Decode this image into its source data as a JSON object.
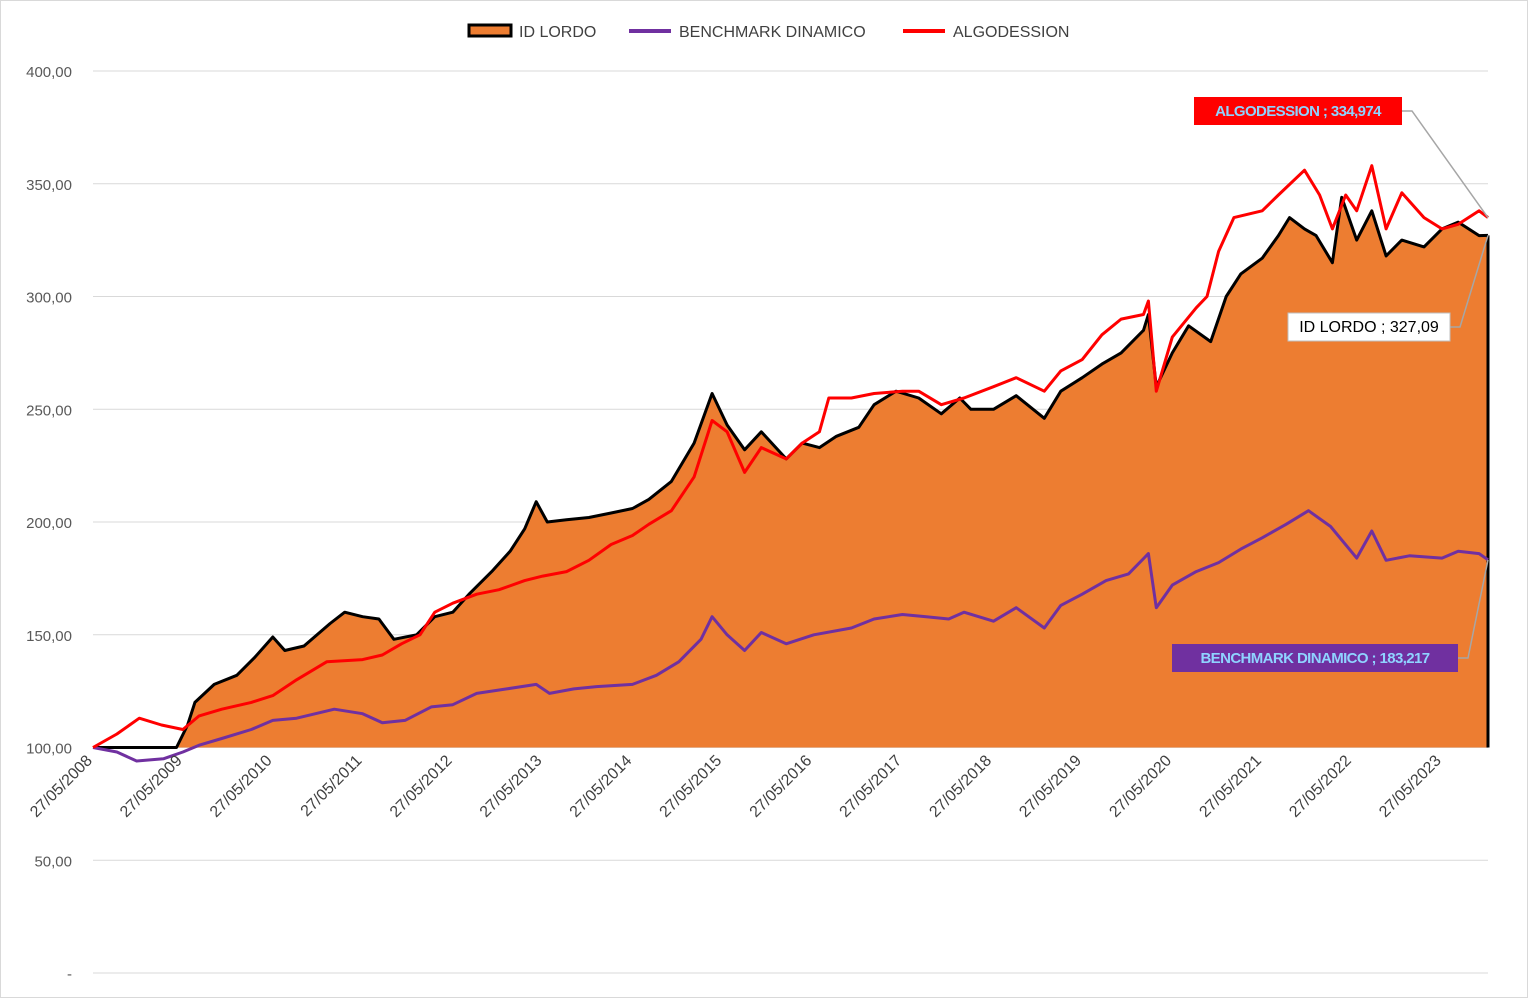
{
  "chart_data": {
    "type": "area",
    "title": "",
    "xlabel": "",
    "ylabel": "",
    "ylim": [
      0,
      400
    ],
    "y_ticks": [
      "-",
      "50,00",
      "100,00",
      "150,00",
      "200,00",
      "250,00",
      "300,00",
      "350,00",
      "400,00"
    ],
    "x_ticks": [
      "27/05/2008",
      "27/05/2009",
      "27/05/2010",
      "27/05/2011",
      "27/05/2012",
      "27/05/2013",
      "27/05/2014",
      "27/05/2015",
      "27/05/2016",
      "27/05/2017",
      "27/05/2018",
      "27/05/2019",
      "27/05/2020",
      "27/05/2021",
      "27/05/2022",
      "27/05/2023"
    ],
    "x_range": [
      "2008-05-27",
      "2023-11-30"
    ],
    "baseline": 100,
    "grid": true,
    "legend_position": "top",
    "series": [
      {
        "name": "ID LORDO",
        "render": "area",
        "fill_color": "#ed7d31",
        "line_color": "#000000",
        "end_label": "ID LORDO ;  327,09",
        "points": [
          [
            "2008-05-27",
            100
          ],
          [
            "2008-08-01",
            100
          ],
          [
            "2008-11-01",
            100
          ],
          [
            "2009-02-01",
            100
          ],
          [
            "2009-05-01",
            100
          ],
          [
            "2009-06-15",
            110
          ],
          [
            "2009-07-15",
            120
          ],
          [
            "2009-10-01",
            128
          ],
          [
            "2010-01-01",
            132
          ],
          [
            "2010-03-15",
            140
          ],
          [
            "2010-05-27",
            149
          ],
          [
            "2010-07-15",
            143
          ],
          [
            "2010-10-01",
            145
          ],
          [
            "2011-01-15",
            155
          ],
          [
            "2011-03-15",
            160
          ],
          [
            "2011-05-27",
            158
          ],
          [
            "2011-08-01",
            157
          ],
          [
            "2011-10-01",
            148
          ],
          [
            "2012-01-01",
            150
          ],
          [
            "2012-03-15",
            158
          ],
          [
            "2012-05-27",
            160
          ],
          [
            "2012-08-01",
            168
          ],
          [
            "2012-11-01",
            178
          ],
          [
            "2013-01-15",
            187
          ],
          [
            "2013-03-15",
            197
          ],
          [
            "2013-05-01",
            209
          ],
          [
            "2013-06-15",
            200
          ],
          [
            "2013-09-01",
            201
          ],
          [
            "2013-12-01",
            202
          ],
          [
            "2014-03-01",
            204
          ],
          [
            "2014-05-27",
            206
          ],
          [
            "2014-08-01",
            210
          ],
          [
            "2014-11-01",
            218
          ],
          [
            "2015-02-01",
            235
          ],
          [
            "2015-04-15",
            257
          ],
          [
            "2015-06-15",
            243
          ],
          [
            "2015-08-25",
            232
          ],
          [
            "2015-11-01",
            240
          ],
          [
            "2016-02-10",
            228
          ],
          [
            "2016-04-15",
            235
          ],
          [
            "2016-06-24",
            233
          ],
          [
            "2016-09-01",
            238
          ],
          [
            "2016-12-01",
            242
          ],
          [
            "2017-02-01",
            252
          ],
          [
            "2017-05-01",
            258
          ],
          [
            "2017-08-01",
            255
          ],
          [
            "2017-11-01",
            248
          ],
          [
            "2018-01-15",
            255
          ],
          [
            "2018-03-01",
            250
          ],
          [
            "2018-06-01",
            250
          ],
          [
            "2018-09-01",
            256
          ],
          [
            "2018-12-24",
            246
          ],
          [
            "2019-03-01",
            258
          ],
          [
            "2019-05-27",
            264
          ],
          [
            "2019-08-15",
            270
          ],
          [
            "2019-11-01",
            275
          ],
          [
            "2020-01-31",
            285
          ],
          [
            "2020-02-20",
            292
          ],
          [
            "2020-03-23",
            260
          ],
          [
            "2020-05-27",
            275
          ],
          [
            "2020-08-01",
            287
          ],
          [
            "2020-10-30",
            280
          ],
          [
            "2021-01-01",
            300
          ],
          [
            "2021-03-01",
            310
          ],
          [
            "2021-05-27",
            317
          ],
          [
            "2021-08-01",
            327
          ],
          [
            "2021-09-15",
            335
          ],
          [
            "2021-11-15",
            330
          ],
          [
            "2022-01-01",
            327
          ],
          [
            "2022-03-08",
            315
          ],
          [
            "2022-04-15",
            344
          ],
          [
            "2022-06-15",
            325
          ],
          [
            "2022-08-15",
            338
          ],
          [
            "2022-10-12",
            318
          ],
          [
            "2022-12-15",
            325
          ],
          [
            "2023-03-15",
            322
          ],
          [
            "2023-05-27",
            330
          ],
          [
            "2023-08-01",
            333
          ],
          [
            "2023-10-25",
            327
          ],
          [
            "2023-11-30",
            327.09
          ]
        ]
      },
      {
        "name": "BENCHMARK DINAMICO",
        "render": "line",
        "line_color": "#7030a0",
        "end_label": "BENCHMARK DINAMICO ;  183,217",
        "points": [
          [
            "2008-05-27",
            100
          ],
          [
            "2008-09-01",
            98
          ],
          [
            "2008-11-20",
            94
          ],
          [
            "2009-03-09",
            95
          ],
          [
            "2009-05-27",
            98
          ],
          [
            "2009-08-01",
            101
          ],
          [
            "2009-11-01",
            104
          ],
          [
            "2010-03-01",
            108
          ],
          [
            "2010-05-27",
            112
          ],
          [
            "2010-09-01",
            113
          ],
          [
            "2011-02-01",
            117
          ],
          [
            "2011-05-27",
            115
          ],
          [
            "2011-08-15",
            111
          ],
          [
            "2011-11-15",
            112
          ],
          [
            "2012-03-01",
            118
          ],
          [
            "2012-05-27",
            119
          ],
          [
            "2012-09-01",
            124
          ],
          [
            "2013-01-01",
            126
          ],
          [
            "2013-05-01",
            128
          ],
          [
            "2013-06-24",
            124
          ],
          [
            "2013-10-01",
            126
          ],
          [
            "2014-01-01",
            127
          ],
          [
            "2014-05-27",
            128
          ],
          [
            "2014-09-01",
            132
          ],
          [
            "2014-12-01",
            138
          ],
          [
            "2015-03-01",
            148
          ],
          [
            "2015-04-15",
            158
          ],
          [
            "2015-06-15",
            150
          ],
          [
            "2015-08-25",
            143
          ],
          [
            "2015-11-01",
            151
          ],
          [
            "2016-02-10",
            146
          ],
          [
            "2016-06-01",
            150
          ],
          [
            "2016-11-01",
            153
          ],
          [
            "2017-02-01",
            157
          ],
          [
            "2017-05-27",
            159
          ],
          [
            "2017-09-01",
            158
          ],
          [
            "2017-12-01",
            157
          ],
          [
            "2018-02-01",
            160
          ],
          [
            "2018-06-01",
            156
          ],
          [
            "2018-09-01",
            162
          ],
          [
            "2018-12-24",
            153
          ],
          [
            "2019-03-01",
            163
          ],
          [
            "2019-05-27",
            168
          ],
          [
            "2019-09-01",
            174
          ],
          [
            "2019-12-01",
            177
          ],
          [
            "2020-02-20",
            186
          ],
          [
            "2020-03-23",
            162
          ],
          [
            "2020-05-27",
            172
          ],
          [
            "2020-09-01",
            178
          ],
          [
            "2020-12-01",
            182
          ],
          [
            "2021-03-01",
            188
          ],
          [
            "2021-05-27",
            193
          ],
          [
            "2021-09-01",
            199
          ],
          [
            "2021-12-01",
            205
          ],
          [
            "2022-03-01",
            198
          ],
          [
            "2022-06-15",
            184
          ],
          [
            "2022-08-15",
            196
          ],
          [
            "2022-10-12",
            183
          ],
          [
            "2023-01-15",
            185
          ],
          [
            "2023-05-27",
            184
          ],
          [
            "2023-08-01",
            187
          ],
          [
            "2023-10-25",
            186
          ],
          [
            "2023-11-30",
            183.217
          ]
        ]
      },
      {
        "name": "ALGODESSION",
        "render": "line",
        "line_color": "#ff0000",
        "end_label": "ALGODESSION ;  334,974",
        "points": [
          [
            "2008-05-27",
            100
          ],
          [
            "2008-09-01",
            106
          ],
          [
            "2008-12-01",
            113
          ],
          [
            "2009-03-01",
            110
          ],
          [
            "2009-05-27",
            108
          ],
          [
            "2009-08-01",
            114
          ],
          [
            "2009-11-01",
            117
          ],
          [
            "2010-03-01",
            120
          ],
          [
            "2010-05-27",
            123
          ],
          [
            "2010-09-01",
            130
          ],
          [
            "2011-01-01",
            138
          ],
          [
            "2011-05-27",
            139
          ],
          [
            "2011-08-15",
            141
          ],
          [
            "2011-11-01",
            146
          ],
          [
            "2012-01-15",
            150
          ],
          [
            "2012-03-15",
            160
          ],
          [
            "2012-05-27",
            164
          ],
          [
            "2012-09-01",
            168
          ],
          [
            "2012-12-01",
            170
          ],
          [
            "2013-03-15",
            174
          ],
          [
            "2013-05-27",
            176
          ],
          [
            "2013-09-01",
            178
          ],
          [
            "2013-12-01",
            183
          ],
          [
            "2014-03-01",
            190
          ],
          [
            "2014-05-27",
            194
          ],
          [
            "2014-08-01",
            199
          ],
          [
            "2014-11-01",
            205
          ],
          [
            "2015-02-01",
            220
          ],
          [
            "2015-04-15",
            245
          ],
          [
            "2015-06-15",
            240
          ],
          [
            "2015-08-25",
            222
          ],
          [
            "2015-11-01",
            233
          ],
          [
            "2016-02-10",
            228
          ],
          [
            "2016-04-15",
            235
          ],
          [
            "2016-06-24",
            240
          ],
          [
            "2016-08-01",
            255
          ],
          [
            "2016-11-01",
            255
          ],
          [
            "2017-02-01",
            257
          ],
          [
            "2017-05-27",
            258
          ],
          [
            "2017-08-01",
            258
          ],
          [
            "2017-11-01",
            252
          ],
          [
            "2018-02-01",
            255
          ],
          [
            "2018-06-01",
            260
          ],
          [
            "2018-09-01",
            264
          ],
          [
            "2018-12-24",
            258
          ],
          [
            "2019-03-01",
            267
          ],
          [
            "2019-05-27",
            272
          ],
          [
            "2019-08-15",
            283
          ],
          [
            "2019-11-01",
            290
          ],
          [
            "2020-01-31",
            292
          ],
          [
            "2020-02-20",
            298
          ],
          [
            "2020-03-23",
            258
          ],
          [
            "2020-05-27",
            282
          ],
          [
            "2020-09-01",
            295
          ],
          [
            "2020-10-15",
            300
          ],
          [
            "2020-12-01",
            320
          ],
          [
            "2021-02-01",
            335
          ],
          [
            "2021-05-27",
            338
          ],
          [
            "2021-08-01",
            345
          ],
          [
            "2021-11-15",
            356
          ],
          [
            "2022-01-15",
            345
          ],
          [
            "2022-03-08",
            330
          ],
          [
            "2022-05-01",
            345
          ],
          [
            "2022-06-15",
            338
          ],
          [
            "2022-08-15",
            358
          ],
          [
            "2022-10-12",
            330
          ],
          [
            "2022-12-15",
            346
          ],
          [
            "2023-03-15",
            335
          ],
          [
            "2023-05-27",
            330
          ],
          [
            "2023-08-01",
            332
          ],
          [
            "2023-10-25",
            338
          ],
          [
            "2023-11-30",
            334.974
          ]
        ]
      }
    ]
  }
}
